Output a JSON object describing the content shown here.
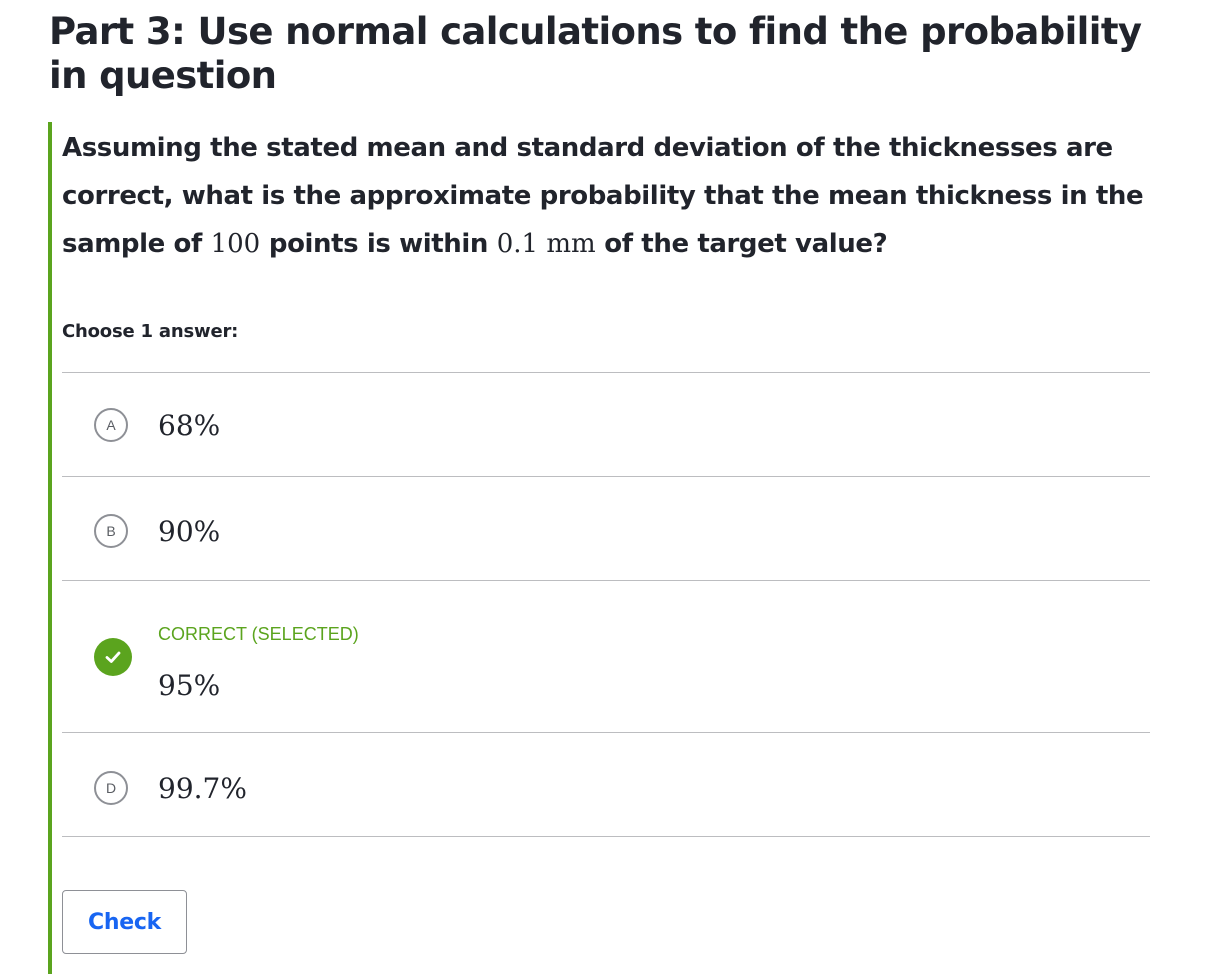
{
  "part_title": "Part 3: Use normal calculations to find the probability in question",
  "question": {
    "text_1": "Assuming the stated mean and standard deviation of the thicknesses are correct, what is the approximate probability that the mean thickness in the sample of ",
    "math_1": "100",
    "text_2": " points is within ",
    "math_2": "0.1 mm",
    "text_3": " of the target value?"
  },
  "choose_label": "Choose 1 answer:",
  "choices": [
    {
      "letter": "A",
      "value": "68%",
      "icon": "letter-badge"
    },
    {
      "letter": "B",
      "value": "90%",
      "icon": "letter-badge"
    },
    {
      "letter": "C",
      "value": "95%",
      "icon": "checkmark-icon",
      "status": "CORRECT (SELECTED)"
    },
    {
      "letter": "D",
      "value": "99.7%",
      "icon": "letter-badge"
    }
  ],
  "check_button": "Check",
  "colors": {
    "accent_green": "#5ba41e",
    "link_blue": "#1865f2",
    "text": "#21242c",
    "divider": "#bcbdc0"
  }
}
